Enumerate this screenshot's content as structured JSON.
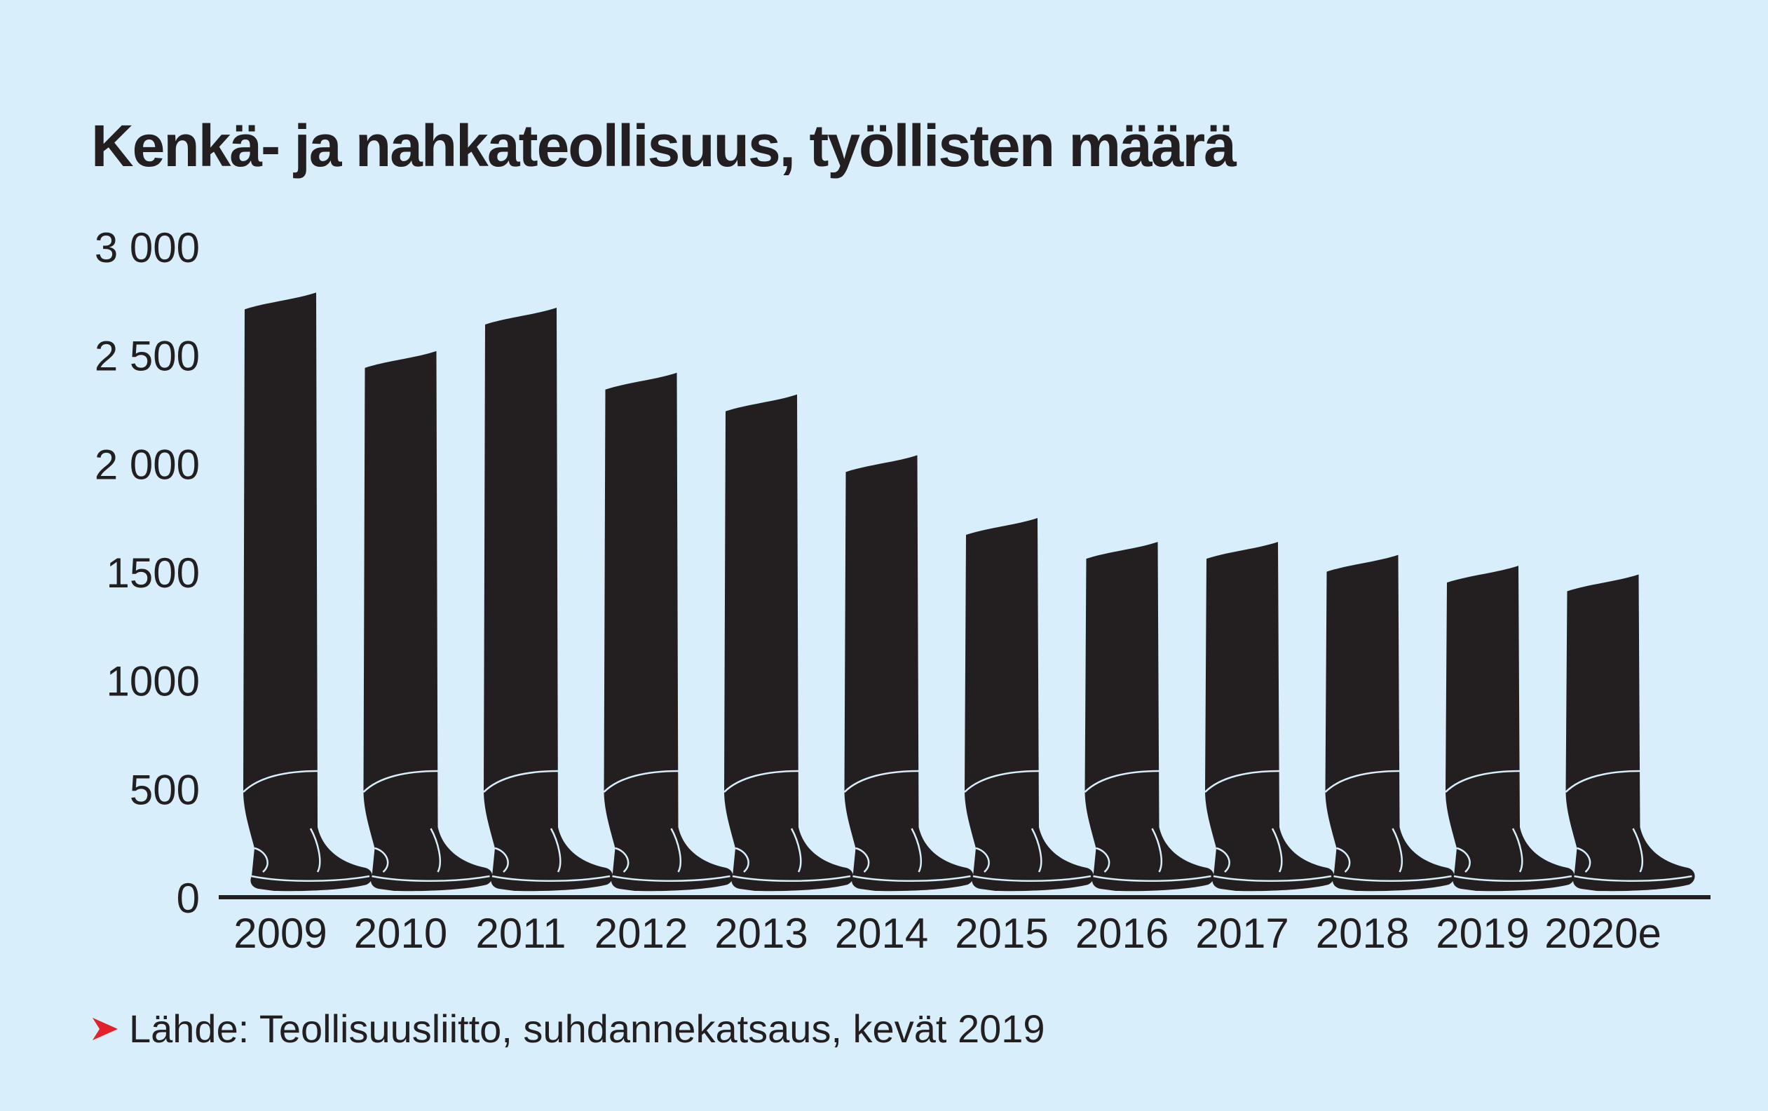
{
  "chart_data": {
    "type": "bar",
    "title": "Kenkä- ja nahkateollisuus, työllisten määrä",
    "categories": [
      "2009",
      "2010",
      "2011",
      "2012",
      "2013",
      "2014",
      "2015",
      "2016",
      "2017",
      "2018",
      "2019",
      "2020e"
    ],
    "values": [
      2750,
      2480,
      2680,
      2380,
      2280,
      2000,
      1710,
      1600,
      1600,
      1540,
      1490,
      1450
    ],
    "ylim": [
      0,
      3000
    ],
    "yticks": [
      0,
      500,
      1000,
      1500,
      2000,
      2500,
      3000
    ],
    "ytick_labels": [
      "0",
      "500",
      "1000",
      "1500",
      "2 000",
      "2 500",
      "3 000"
    ],
    "xlabel": "",
    "ylabel": "",
    "grid": false,
    "bar_color": "#231f20",
    "background_color": "#d8eefa",
    "mark_shape": "boot-icon"
  },
  "source": {
    "text": "Lähde: Teollisuusliitto, suhdannekatsaus, kevät 2019",
    "marker_color": "#e4202a",
    "marker_icon": "arrow-right-icon"
  }
}
